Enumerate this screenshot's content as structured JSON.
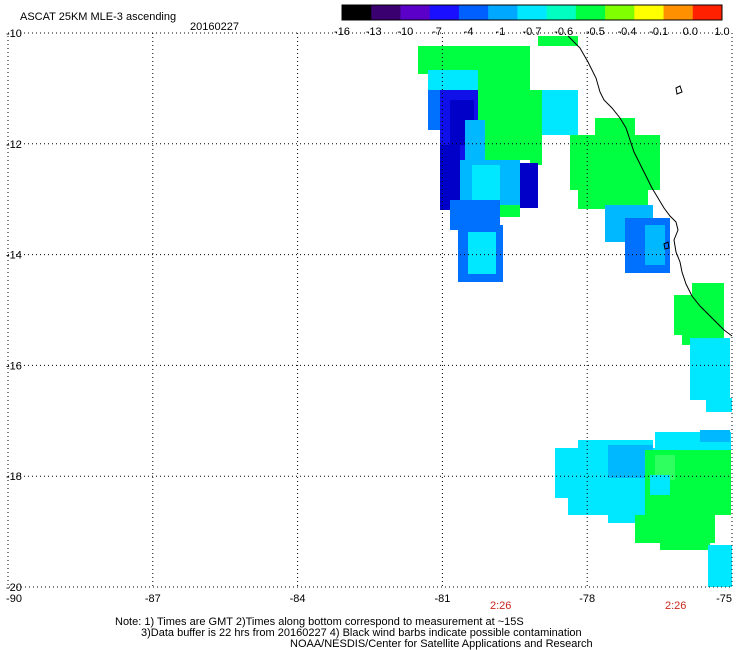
{
  "header": {
    "title": "ASCAT 25KM MLE-3 ascending",
    "date": "20160227"
  },
  "colorbar": {
    "labels": [
      "-16",
      "-13",
      "-10",
      "-7",
      "-4",
      "-1",
      "-0.7",
      "-0.6",
      "-0.5",
      "-0.4",
      "-0.1",
      "0.0",
      "1.0"
    ],
    "colors": [
      "#000000",
      "#3a0070",
      "#5a00c8",
      "#1a10ff",
      "#0060ff",
      "#00a8ff",
      "#00e8ff",
      "#00ffc0",
      "#00ff40",
      "#80ff00",
      "#ffff00",
      "#ff9000",
      "#ff2000"
    ]
  },
  "axes": {
    "lat_labels": [
      "-10",
      "-12",
      "-14",
      "-16",
      "-18",
      "-20"
    ],
    "lon_labels": [
      "-90",
      "-87",
      "-84",
      "-81",
      "-78",
      "-75"
    ]
  },
  "pass_times": [
    "2:26",
    "2:26"
  ],
  "notes": {
    "line1": "Note: 1) Times are GMT 2)Times along bottom correspond to measurement at ~15S",
    "line2": "3)Data buffer is 22 hrs from 20160227 4) Black wind barbs indicate possible contamination",
    "line3": "NOAA/NESDIS/Center for Satellite Applications and Research"
  },
  "palette": {
    "green": "#00ff40",
    "light_green": "#30ff60",
    "cyan": "#00e8ff",
    "light_blue": "#00b8ff",
    "blue": "#0070ff",
    "dark_blue": "#1010e8",
    "navy": "#0000c8"
  }
}
